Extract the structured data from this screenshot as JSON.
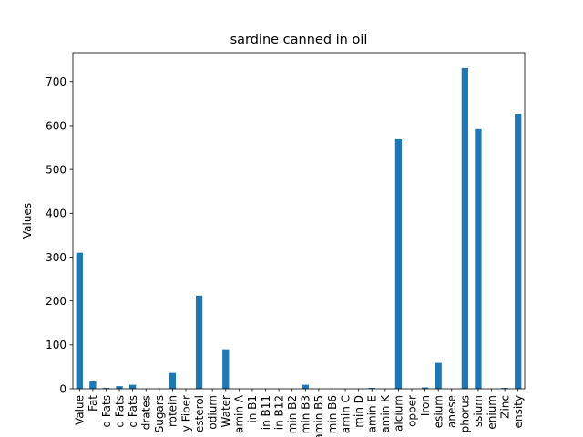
{
  "chart_data": {
    "type": "bar",
    "title": "sardine canned in oil",
    "xlabel": "",
    "ylabel": "Values",
    "ylim": [
      0,
      766
    ],
    "yticks": [
      0,
      100,
      200,
      300,
      400,
      500,
      600,
      700
    ],
    "grid": false,
    "legend": "none",
    "categories": [
      "Value",
      "Fat",
      "d Fats",
      "d Fats",
      "d Fats",
      "drates",
      "Sugars",
      "rotein",
      "y Fiber",
      "esterol",
      "odium",
      "Water",
      "amin A",
      "in B1",
      "in B11",
      "in B12",
      "min B2",
      "min B3",
      "amin B5",
      "min B6",
      "amin C",
      "min D",
      "amin E",
      "amin K",
      "alcium",
      "opper",
      "Iron",
      "esium",
      "anese",
      "phorus",
      "ssium",
      "enium",
      "Zinc",
      "ensity"
    ],
    "values": [
      310,
      17,
      2,
      6,
      9,
      0,
      0,
      36,
      0,
      212,
      0,
      90,
      0,
      0,
      0,
      0,
      0,
      9,
      0,
      0,
      0,
      0,
      2,
      0,
      569,
      0,
      3,
      59,
      0,
      731,
      592,
      0,
      2,
      627
    ],
    "colors": {
      "bar": "#1f77b4",
      "axis": "#000000"
    }
  }
}
